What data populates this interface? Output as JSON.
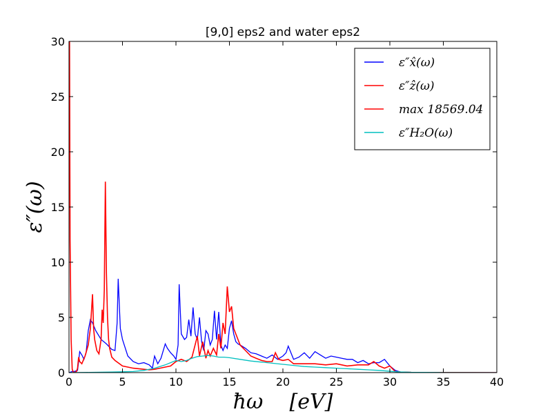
{
  "chart_data": {
    "type": "line",
    "title": "[9,0] eps2 and water eps2",
    "xlabel": "ħω    [eV]",
    "ylabel": "ε″(ω)",
    "xlim": [
      0,
      40
    ],
    "ylim": [
      0,
      30
    ],
    "xticks": [
      "0",
      "5",
      "10",
      "15",
      "20",
      "25",
      "30",
      "35",
      "40"
    ],
    "yticks": [
      "0",
      "5",
      "10",
      "15",
      "20",
      "25",
      "30"
    ],
    "grid": false,
    "legend_position": "top-right",
    "series": [
      {
        "name": "ε″x̂(ω)",
        "color": "#0000ff",
        "x": [
          0,
          0.3,
          0.5,
          0.8,
          0.9,
          1.0,
          1.2,
          1.4,
          1.6,
          1.8,
          2.0,
          2.2,
          2.5,
          3.0,
          3.5,
          4.0,
          4.3,
          4.5,
          4.6,
          4.8,
          5.0,
          5.5,
          6.0,
          6.5,
          7.0,
          7.5,
          7.8,
          8.0,
          8.3,
          8.6,
          9.0,
          9.2,
          9.5,
          9.8,
          10.0,
          10.2,
          10.3,
          10.5,
          10.8,
          11.0,
          11.2,
          11.4,
          11.6,
          11.8,
          12.0,
          12.2,
          12.4,
          12.6,
          12.8,
          13.0,
          13.2,
          13.4,
          13.6,
          13.8,
          14.0,
          14.2,
          14.4,
          14.6,
          14.8,
          15.0,
          15.2,
          15.4,
          15.6,
          15.8,
          16.0,
          16.5,
          17.0,
          17.5,
          18.0,
          18.5,
          19.0,
          19.5,
          20.0,
          20.3,
          20.5,
          21.0,
          21.5,
          22.0,
          22.5,
          23.0,
          23.5,
          24.0,
          24.5,
          25.0,
          25.5,
          26.0,
          26.5,
          27.0,
          27.5,
          28.0,
          28.5,
          29.0,
          29.5,
          30.0,
          30.5,
          31.0,
          32.0,
          35.0,
          40.0
        ],
        "y": [
          0,
          0.1,
          0.1,
          0.2,
          1.0,
          1.9,
          1.6,
          1.2,
          1.8,
          3.8,
          4.8,
          4.5,
          3.8,
          3.0,
          2.6,
          2.1,
          2.0,
          4.5,
          8.5,
          4.0,
          3.0,
          1.5,
          1.0,
          0.8,
          0.9,
          0.7,
          0.4,
          1.5,
          0.8,
          1.3,
          2.6,
          2.2,
          1.8,
          1.5,
          1.2,
          2.5,
          8.0,
          3.5,
          3.0,
          3.2,
          4.8,
          3.3,
          5.9,
          3.5,
          3.0,
          5.0,
          2.8,
          2.0,
          3.8,
          3.5,
          2.5,
          3.0,
          5.6,
          3.0,
          5.5,
          2.5,
          2.0,
          2.5,
          2.2,
          4.0,
          4.7,
          3.5,
          2.8,
          2.6,
          2.5,
          2.2,
          1.8,
          1.7,
          1.5,
          1.3,
          1.6,
          1.2,
          1.5,
          1.8,
          2.4,
          1.2,
          1.4,
          1.8,
          1.3,
          1.9,
          1.6,
          1.3,
          1.5,
          1.4,
          1.3,
          1.2,
          1.2,
          0.9,
          1.1,
          0.8,
          0.9,
          0.9,
          1.2,
          0.6,
          0.2,
          0.05,
          0.02,
          0.01,
          0
        ]
      },
      {
        "name": "ε″ẑ(ω)",
        "color": "#ff0000",
        "x": [
          0,
          0.05,
          0.1,
          0.2,
          0.3,
          0.4,
          0.5,
          0.7,
          0.8,
          0.9,
          1.0,
          1.2,
          1.5,
          1.8,
          2.0,
          2.2,
          2.3,
          2.4,
          2.6,
          2.8,
          3.0,
          3.1,
          3.2,
          3.3,
          3.4,
          3.5,
          3.6,
          3.7,
          3.8,
          4.0,
          4.3,
          5.0,
          6.0,
          7.0,
          7.5,
          8.0,
          8.5,
          9.0,
          9.5,
          10.0,
          10.5,
          11.0,
          11.5,
          12.0,
          12.2,
          12.5,
          12.8,
          13.0,
          13.2,
          13.5,
          13.8,
          14.0,
          14.2,
          14.4,
          14.6,
          14.8,
          15.0,
          15.2,
          15.4,
          15.6,
          15.8,
          16.0,
          16.5,
          17.0,
          17.5,
          18.0,
          18.5,
          19.0,
          19.3,
          19.6,
          20.0,
          20.5,
          21.0,
          22.0,
          23.0,
          24.0,
          25.0,
          26.0,
          27.0,
          28.0,
          28.5,
          29.0,
          29.5,
          30.0,
          30.5,
          31.0,
          32.0,
          40.0
        ],
        "y": [
          30,
          30,
          12,
          3.0,
          0.3,
          0.05,
          0.0,
          0.1,
          0.4,
          1.4,
          1.0,
          0.8,
          1.5,
          2.5,
          4.0,
          7.1,
          4.0,
          3.0,
          2.0,
          1.7,
          3.0,
          5.7,
          4.5,
          7.5,
          17.3,
          9.0,
          5.0,
          3.0,
          2.2,
          1.4,
          1.1,
          0.6,
          0.4,
          0.3,
          0.25,
          0.3,
          0.4,
          0.5,
          0.6,
          1.0,
          1.2,
          1.0,
          1.4,
          3.3,
          1.5,
          2.8,
          1.3,
          2.0,
          1.5,
          2.2,
          1.6,
          3.5,
          2.2,
          4.5,
          3.5,
          7.8,
          5.5,
          6.0,
          4.0,
          3.5,
          3.0,
          2.5,
          2.0,
          1.5,
          1.3,
          1.1,
          1.0,
          1.0,
          1.8,
          1.2,
          1.1,
          1.2,
          0.8,
          0.8,
          0.8,
          0.7,
          0.8,
          0.6,
          0.7,
          0.7,
          1.0,
          0.6,
          0.4,
          0.6,
          0.1,
          0.05,
          0.02,
          0
        ]
      },
      {
        "name": "max 18569.04",
        "color": "#ff0000",
        "x": [],
        "y": []
      },
      {
        "name": "ε″H₂O(ω)",
        "color": "#00bfbf",
        "x": [
          0,
          2,
          4,
          6,
          7,
          8,
          9,
          9.5,
          10,
          10.5,
          11,
          11.5,
          12,
          12.5,
          13,
          13.5,
          14,
          14.5,
          15,
          16,
          17,
          18,
          19,
          20,
          21,
          22,
          23,
          24,
          25,
          26,
          27,
          28,
          29,
          30,
          31,
          32,
          35,
          40
        ],
        "y": [
          0,
          0.02,
          0.05,
          0.1,
          0.2,
          0.4,
          0.7,
          0.9,
          1.1,
          1.0,
          1.1,
          1.3,
          1.45,
          1.5,
          1.55,
          1.5,
          1.4,
          1.4,
          1.35,
          1.2,
          1.05,
          0.95,
          0.85,
          0.75,
          0.65,
          0.55,
          0.5,
          0.45,
          0.4,
          0.35,
          0.3,
          0.25,
          0.2,
          0.12,
          0.06,
          0.03,
          0.01,
          0
        ]
      }
    ]
  }
}
